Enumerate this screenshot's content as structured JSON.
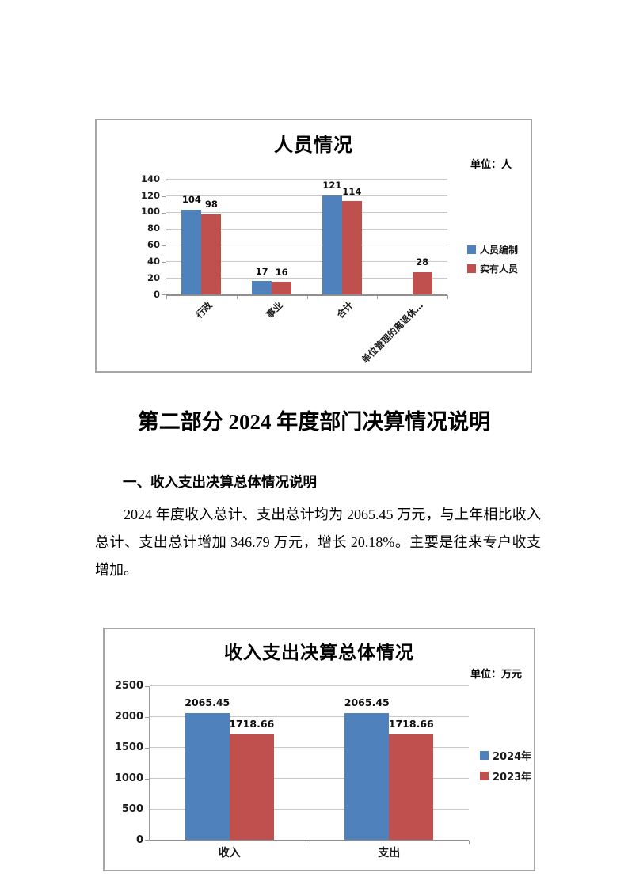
{
  "document": {
    "section_heading": "第二部分 2024 年度部门决算情况说明",
    "subsection_heading": "一、收入支出决算总体情况说明",
    "paragraph": "2024 年度收入总计、支出总计均为 2065.45 万元，与上年相比收入总计、支出总计增加 346.79 万元，增长 20.18%。主要是往来专户收支增加。"
  },
  "charts": [
    {
      "chart_data": {
        "type": "bar",
        "title": "人员情况",
        "unit_label": "单位：人",
        "categories": [
          "行政",
          "事业",
          "合计",
          "单位管理的离退休…"
        ],
        "series": [
          {
            "name": "人员编制",
            "color": "#4f81bd",
            "values": [
              104,
              17,
              121,
              null
            ]
          },
          {
            "name": "实有人员",
            "color": "#c0504d",
            "values": [
              98,
              16,
              114,
              28
            ]
          }
        ],
        "ylim": [
          0,
          140
        ],
        "ytick_step": 20,
        "grid": true,
        "legend_position": "right",
        "xlabel_rotation": -45
      }
    },
    {
      "chart_data": {
        "type": "bar",
        "title": "收入支出决算总体情况",
        "unit_label": "单位：万元",
        "categories": [
          "收入",
          "支出"
        ],
        "series": [
          {
            "name": "2024年",
            "color": "#4f81bd",
            "values": [
              2065.45,
              2065.45
            ]
          },
          {
            "name": "2023年",
            "color": "#c0504d",
            "values": [
              1718.66,
              1718.66
            ]
          }
        ],
        "ylim": [
          0,
          2500
        ],
        "ytick_step": 500,
        "grid": true,
        "legend_position": "right",
        "xlabel_rotation": 0
      }
    }
  ]
}
